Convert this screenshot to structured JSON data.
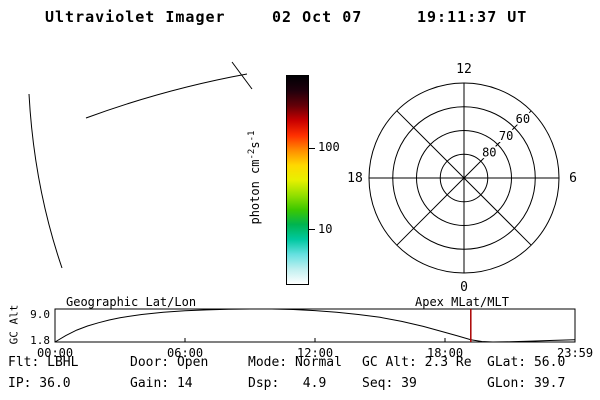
{
  "header": {
    "instrument": "Ultraviolet Imager",
    "date": "02 Oct 07",
    "time": "19:11:37 UT"
  },
  "status": {
    "rows": [
      [
        "Flt: LBHL",
        "Door: Open",
        "Mode: Normal",
        "GC Alt: 2.3 Re",
        "GLat: 56.0"
      ],
      [
        "IP: 36.0",
        "Gain: 14",
        "Dsp:   4.9",
        "Seq: 39",
        "GLon: 39.7"
      ]
    ]
  },
  "chart_data": [
    {
      "type": "polar_grid",
      "title": "Apex MLat/MLT",
      "outer_mlat": 50,
      "mlat_rings": [
        80,
        70,
        60,
        50
      ],
      "mlat_ring_labels": [
        "80",
        "70",
        "60"
      ],
      "mlt_labels": [
        {
          "hour": "12",
          "angle_deg": 90
        },
        {
          "hour": "6",
          "angle_deg": 0
        },
        {
          "hour": "18",
          "angle_deg": 180
        },
        {
          "hour": "0",
          "angle_deg": 270
        }
      ],
      "spokes_every_deg": 45
    },
    {
      "type": "colorbar",
      "scale": "log",
      "unit": "photon cm-2 s-1",
      "unit_parts": {
        "main": "photon cm",
        "sup1": "-2",
        "mid": "s",
        "sup2": "-1"
      },
      "ticks": [
        {
          "label": "100",
          "frac_from_top": 0.351
        },
        {
          "label": "10",
          "frac_from_top": 0.745
        }
      ],
      "gradient_top_to_bottom": [
        "#000004",
        "#20000c",
        "#640008",
        "#c80000",
        "#ff3000",
        "#ff8c00",
        "#ffd800",
        "#e8f000",
        "#96e000",
        "#3cc800",
        "#00b450",
        "#00c8a0",
        "#64e0e0",
        "#c0f0f0",
        "#ffffff"
      ]
    },
    {
      "type": "line",
      "title_left": "Geographic Lat/Lon",
      "title_right": "Apex MLat/MLT",
      "ylabel": "GC Alt",
      "ylim": [
        1.8,
        9.0
      ],
      "yticks": [
        9.0,
        1.8
      ],
      "ytick_labels": [
        "9.0",
        "1.8"
      ],
      "xlim_hours": [
        0,
        24
      ],
      "xticks_hours": [
        0,
        6,
        12,
        18,
        24
      ],
      "xtick_labels": [
        "00:00",
        "06:00",
        "12:00",
        "18:00",
        "23:59"
      ],
      "marker_time_hours": 19.19,
      "marker_color": "#aa0000",
      "points": [
        [
          0,
          1.8
        ],
        [
          0.5,
          3.2
        ],
        [
          1,
          4.4
        ],
        [
          1.5,
          5.3
        ],
        [
          2,
          6.0
        ],
        [
          2.5,
          6.6
        ],
        [
          3,
          7.1
        ],
        [
          4,
          7.8
        ],
        [
          5,
          8.3
        ],
        [
          6,
          8.6
        ],
        [
          7,
          8.8
        ],
        [
          8,
          8.95
        ],
        [
          9,
          9.0
        ],
        [
          10,
          9.0
        ],
        [
          11,
          8.9
        ],
        [
          12,
          8.65
        ],
        [
          13,
          8.3
        ],
        [
          14,
          7.8
        ],
        [
          15,
          7.2
        ],
        [
          16,
          6.3
        ],
        [
          17,
          5.2
        ],
        [
          18,
          3.9
        ],
        [
          18.6,
          3.1
        ],
        [
          19.19,
          2.3
        ],
        [
          19.7,
          1.9
        ],
        [
          20.2,
          1.8
        ],
        [
          21,
          1.85
        ],
        [
          22,
          2.0
        ],
        [
          23,
          2.15
        ],
        [
          23.98,
          2.3
        ]
      ]
    }
  ]
}
